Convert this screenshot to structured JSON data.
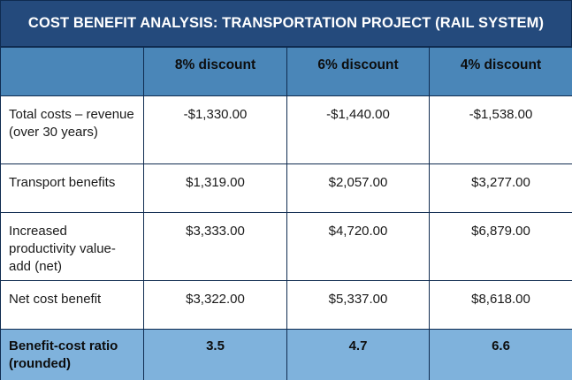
{
  "title": "COST BENEFIT ANALYSIS: TRANSPORTATION PROJECT (RAIL SYSTEM)",
  "table": {
    "headers": [
      "",
      "8% discount",
      "6% discount",
      "4% discount"
    ],
    "rows": [
      {
        "label": "Total costs – revenue (over 30 years)",
        "values": [
          "-$1,330.00",
          "-$1,440.00",
          "-$1,538.00"
        ]
      },
      {
        "label": "Transport benefits",
        "values": [
          "$1,319.00",
          "$2,057.00",
          "$3,277.00"
        ]
      },
      {
        "label": "Increased productivity value-add (net)",
        "values": [
          "$3,333.00",
          "$4,720.00",
          "$6,879.00"
        ]
      },
      {
        "label": "Net cost benefit",
        "values": [
          "$3,322.00",
          "$5,337.00",
          "$8,618.00"
        ]
      }
    ],
    "summary": {
      "label": "Benefit-cost ratio (rounded)",
      "values": [
        "3.5",
        "4.7",
        "6.6"
      ]
    }
  },
  "colors": {
    "title_background": "#244a7c",
    "header_background": "#4a86b8",
    "summary_background": "#7fb2dc",
    "border": "#0f2b50"
  }
}
